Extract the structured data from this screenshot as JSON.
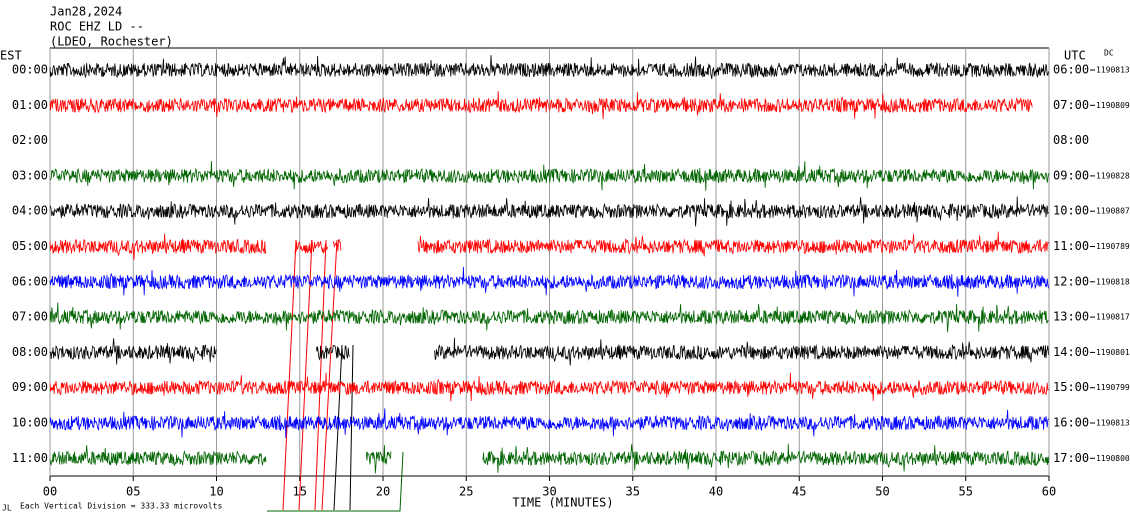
{
  "chart_data": {
    "type": "helicorder",
    "title_lines": [
      "Jan28,2024",
      "ROC EHZ LD --",
      "(LDEO, Rochester)"
    ],
    "left_axis_label": "EST",
    "right_axis_label": "UTC",
    "dc_label": "DC",
    "x_label": "TIME (MINUTES)",
    "footnote": "Each Vertical Division =  333.33 microvolts",
    "xlim": [
      0,
      60
    ],
    "xticks": [
      {
        "value": 0,
        "label": "00"
      },
      {
        "value": 5,
        "label": "05"
      },
      10,
      15,
      20,
      25,
      30,
      35,
      40,
      45,
      50,
      55,
      60
    ],
    "grid": true,
    "rows": [
      {
        "est": "00:00",
        "utc": "06:00",
        "dc": 1190813,
        "color": "#000000",
        "segments": [
          [
            0,
            60
          ]
        ]
      },
      {
        "est": "01:00",
        "utc": "07:00",
        "dc": 1190809,
        "color": "#ff0000",
        "segments": [
          [
            0,
            59
          ]
        ]
      },
      {
        "est": "02:00",
        "utc": "08:00",
        "dc": null,
        "color": "#000000",
        "segments": []
      },
      {
        "est": "03:00",
        "utc": "09:00",
        "dc": 1190828,
        "color": "#006400",
        "segments": [
          [
            0,
            60
          ]
        ]
      },
      {
        "est": "04:00",
        "utc": "10:00",
        "dc": 1190807,
        "color": "#000000",
        "segments": [
          [
            0,
            60
          ]
        ]
      },
      {
        "est": "05:00",
        "utc": "11:00",
        "dc": 1190789,
        "color": "#ff0000",
        "segments": [
          [
            0,
            13
          ],
          [
            14.7,
            16.7
          ],
          [
            17,
            17.5
          ],
          [
            22.1,
            60
          ]
        ]
      },
      {
        "est": "06:00",
        "utc": "12:00",
        "dc": 1190818,
        "color": "#0000ff",
        "segments": [
          [
            0,
            60
          ]
        ]
      },
      {
        "est": "07:00",
        "utc": "13:00",
        "dc": 1190817,
        "color": "#006400",
        "segments": [
          [
            0,
            60
          ]
        ]
      },
      {
        "est": "08:00",
        "utc": "14:00",
        "dc": 1190801,
        "color": "#000000",
        "segments": [
          [
            0,
            10
          ],
          [
            16,
            18
          ],
          [
            23.1,
            60
          ]
        ]
      },
      {
        "est": "09:00",
        "utc": "15:00",
        "dc": 1190799,
        "color": "#ff0000",
        "segments": [
          [
            0,
            60
          ]
        ]
      },
      {
        "est": "10:00",
        "utc": "16:00",
        "dc": 1190813,
        "color": "#0000ff",
        "segments": [
          [
            0,
            60
          ]
        ]
      },
      {
        "est": "11:00",
        "utc": "17:00",
        "dc": 1190800,
        "color": "#006400",
        "segments": [
          [
            0,
            13
          ],
          [
            19,
            20.5
          ],
          [
            26,
            60
          ]
        ]
      }
    ]
  }
}
